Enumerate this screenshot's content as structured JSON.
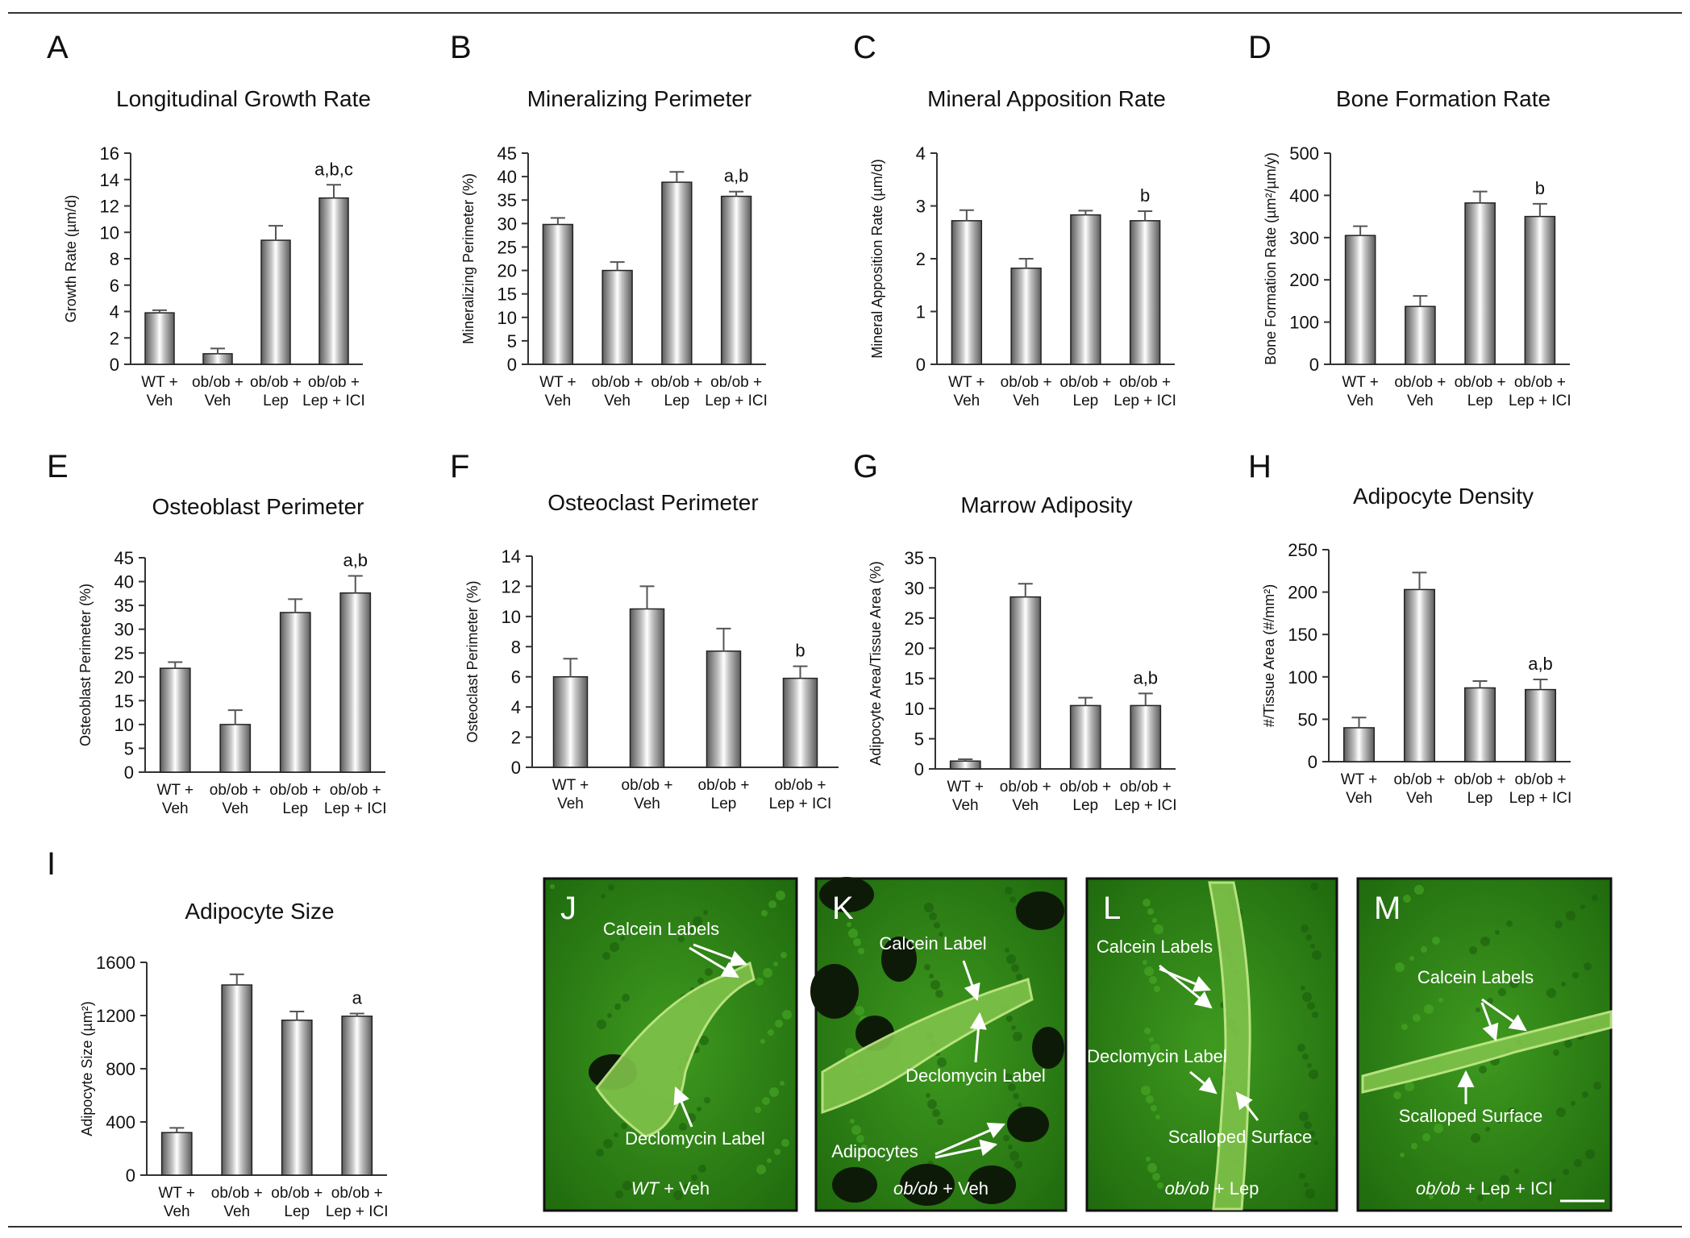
{
  "figure": {
    "colors": {
      "bar_dark": "#5a5a5a",
      "bar_light": "#ffffff",
      "axis": "#333333",
      "label_green": "#2a7a12"
    }
  },
  "chart_data": [
    {
      "panel": "A",
      "type": "bar",
      "title": "Longitudinal Growth Rate",
      "ylabel": "Growth Rate (µm/d)",
      "categories": [
        "WT +|Veh",
        "ob/ob +|Veh",
        "ob/ob +|Lep",
        "ob/ob +|Lep + ICI"
      ],
      "values": [
        3.9,
        0.8,
        9.4,
        12.6
      ],
      "errors": [
        0.2,
        0.4,
        1.1,
        1.0
      ],
      "annotations": [
        "",
        "",
        "",
        "a,b,c"
      ],
      "ylim": [
        0,
        16
      ],
      "yticks": [
        0,
        2,
        4,
        6,
        8,
        10,
        12,
        14,
        16
      ],
      "grid": false
    },
    {
      "panel": "B",
      "type": "bar",
      "title": "Mineralizing Perimeter",
      "ylabel": "Mineralizing Perimeter (%)",
      "categories": [
        "WT +|Veh",
        "ob/ob +|Veh",
        "ob/ob +|Lep",
        "ob/ob +|Lep + ICI"
      ],
      "values": [
        29.8,
        20.0,
        38.8,
        35.8
      ],
      "errors": [
        1.4,
        1.8,
        2.2,
        1.0
      ],
      "annotations": [
        "",
        "",
        "",
        "a,b"
      ],
      "ylim": [
        0,
        45
      ],
      "yticks": [
        0,
        5,
        10,
        15,
        20,
        25,
        30,
        35,
        40,
        45
      ],
      "grid": false
    },
    {
      "panel": "C",
      "type": "bar",
      "title": "Mineral Apposition Rate",
      "ylabel": "Mineral Apposition Rate (µm/d)",
      "categories": [
        "WT +|Veh",
        "ob/ob +|Veh",
        "ob/ob +|Lep",
        "ob/ob +|Lep + ICI"
      ],
      "values": [
        2.72,
        1.82,
        2.83,
        2.72
      ],
      "errors": [
        0.2,
        0.18,
        0.08,
        0.18
      ],
      "annotations": [
        "",
        "",
        "",
        "b"
      ],
      "ylim": [
        0,
        4
      ],
      "yticks": [
        0,
        1,
        2,
        3,
        4
      ],
      "grid": false
    },
    {
      "panel": "D",
      "type": "bar",
      "title": "Bone Formation Rate",
      "ylabel": "Bone Formation Rate (µm²/µm/y)",
      "categories": [
        "WT +|Veh",
        "ob/ob +|Veh",
        "ob/ob +|Lep",
        "ob/ob +|Lep + ICI"
      ],
      "values": [
        305,
        137,
        382,
        350
      ],
      "errors": [
        22,
        25,
        27,
        30
      ],
      "annotations": [
        "",
        "",
        "",
        "b"
      ],
      "ylim": [
        0,
        500
      ],
      "yticks": [
        0,
        100,
        200,
        300,
        400,
        500
      ],
      "grid": false
    },
    {
      "panel": "E",
      "type": "bar",
      "title": "Osteoblast Perimeter",
      "ylabel": "Osteoblast Perimeter (%)",
      "categories": [
        "WT +|Veh",
        "ob/ob +|Veh",
        "ob/ob +|Lep",
        "ob/ob +|Lep + ICI"
      ],
      "values": [
        21.8,
        10.0,
        33.5,
        37.6
      ],
      "errors": [
        1.3,
        3.0,
        2.8,
        3.6
      ],
      "annotations": [
        "",
        "",
        "",
        "a,b"
      ],
      "ylim": [
        0,
        45
      ],
      "yticks": [
        0,
        5,
        10,
        15,
        20,
        25,
        30,
        35,
        40,
        45
      ],
      "grid": false
    },
    {
      "panel": "F",
      "type": "bar",
      "title": "Osteoclast Perimeter",
      "ylabel": "Osteoclast Perimeter (%)",
      "categories": [
        "WT +|Veh",
        "ob/ob +|Veh",
        "ob/ob +|Lep",
        "ob/ob +|Lep + ICI"
      ],
      "values": [
        6.0,
        10.5,
        7.7,
        5.9
      ],
      "errors": [
        1.2,
        1.5,
        1.5,
        0.8
      ],
      "annotations": [
        "",
        "",
        "",
        "b"
      ],
      "ylim": [
        0,
        14
      ],
      "yticks": [
        0,
        2,
        4,
        6,
        8,
        10,
        12,
        14
      ],
      "grid": false
    },
    {
      "panel": "G",
      "type": "bar",
      "title": "Marrow Adiposity",
      "ylabel": "Adipocyte Area/Tissue Area (%)",
      "categories": [
        "WT +|Veh",
        "ob/ob +|Veh",
        "ob/ob +|Lep",
        "ob/ob +|Lep + ICI"
      ],
      "values": [
        1.3,
        28.5,
        10.5,
        10.5
      ],
      "errors": [
        0.3,
        2.2,
        1.3,
        2.0
      ],
      "annotations": [
        "",
        "",
        "",
        "a,b"
      ],
      "ylim": [
        0,
        35
      ],
      "yticks": [
        0,
        5,
        10,
        15,
        20,
        25,
        30,
        35
      ],
      "grid": false
    },
    {
      "panel": "H",
      "type": "bar",
      "title": "Adipocyte Density",
      "ylabel": "#/Tissue Area (#/mm²)",
      "categories": [
        "WT +|Veh",
        "ob/ob +|Veh",
        "ob/ob +|Lep",
        "ob/ob +|Lep + ICI"
      ],
      "values": [
        40,
        203,
        87,
        85
      ],
      "errors": [
        12,
        20,
        8,
        12
      ],
      "annotations": [
        "",
        "",
        "",
        "a,b"
      ],
      "ylim": [
        0,
        250
      ],
      "yticks": [
        0,
        50,
        100,
        150,
        200,
        250
      ],
      "grid": false
    },
    {
      "panel": "I",
      "type": "bar",
      "title": "Adipocyte Size",
      "ylabel": "Adipocyte Size (µm²)",
      "categories": [
        "WT +|Veh",
        "ob/ob +|Veh",
        "ob/ob +|Lep",
        "ob/ob +|Lep + ICI"
      ],
      "values": [
        320,
        1430,
        1165,
        1195
      ],
      "errors": [
        35,
        80,
        65,
        20
      ],
      "annotations": [
        "",
        "",
        "",
        "a"
      ],
      "ylim": [
        0,
        1600
      ],
      "yticks": [
        0,
        400,
        800,
        1200,
        1600
      ],
      "grid": false
    }
  ],
  "micrographs": [
    {
      "panel": "J",
      "caption_italic": "WT",
      "caption_rest": " + Veh",
      "labels": [
        "Calcein Labels",
        "Declomycin Label"
      ]
    },
    {
      "panel": "K",
      "caption_italic": "ob/ob",
      "caption_rest": " + Veh",
      "labels": [
        "Calcein Label",
        "Declomycin Label",
        "Adipocytes"
      ]
    },
    {
      "panel": "L",
      "caption_italic": "ob/ob",
      "caption_rest": " + Lep",
      "labels": [
        "Calcein Labels",
        "Declomycin Label",
        "Scalloped Surface"
      ]
    },
    {
      "panel": "M",
      "caption_italic": "ob/ob",
      "caption_rest": " + Lep + ICI",
      "labels": [
        "Calcein Labels",
        "Scalloped Surface"
      ]
    }
  ]
}
